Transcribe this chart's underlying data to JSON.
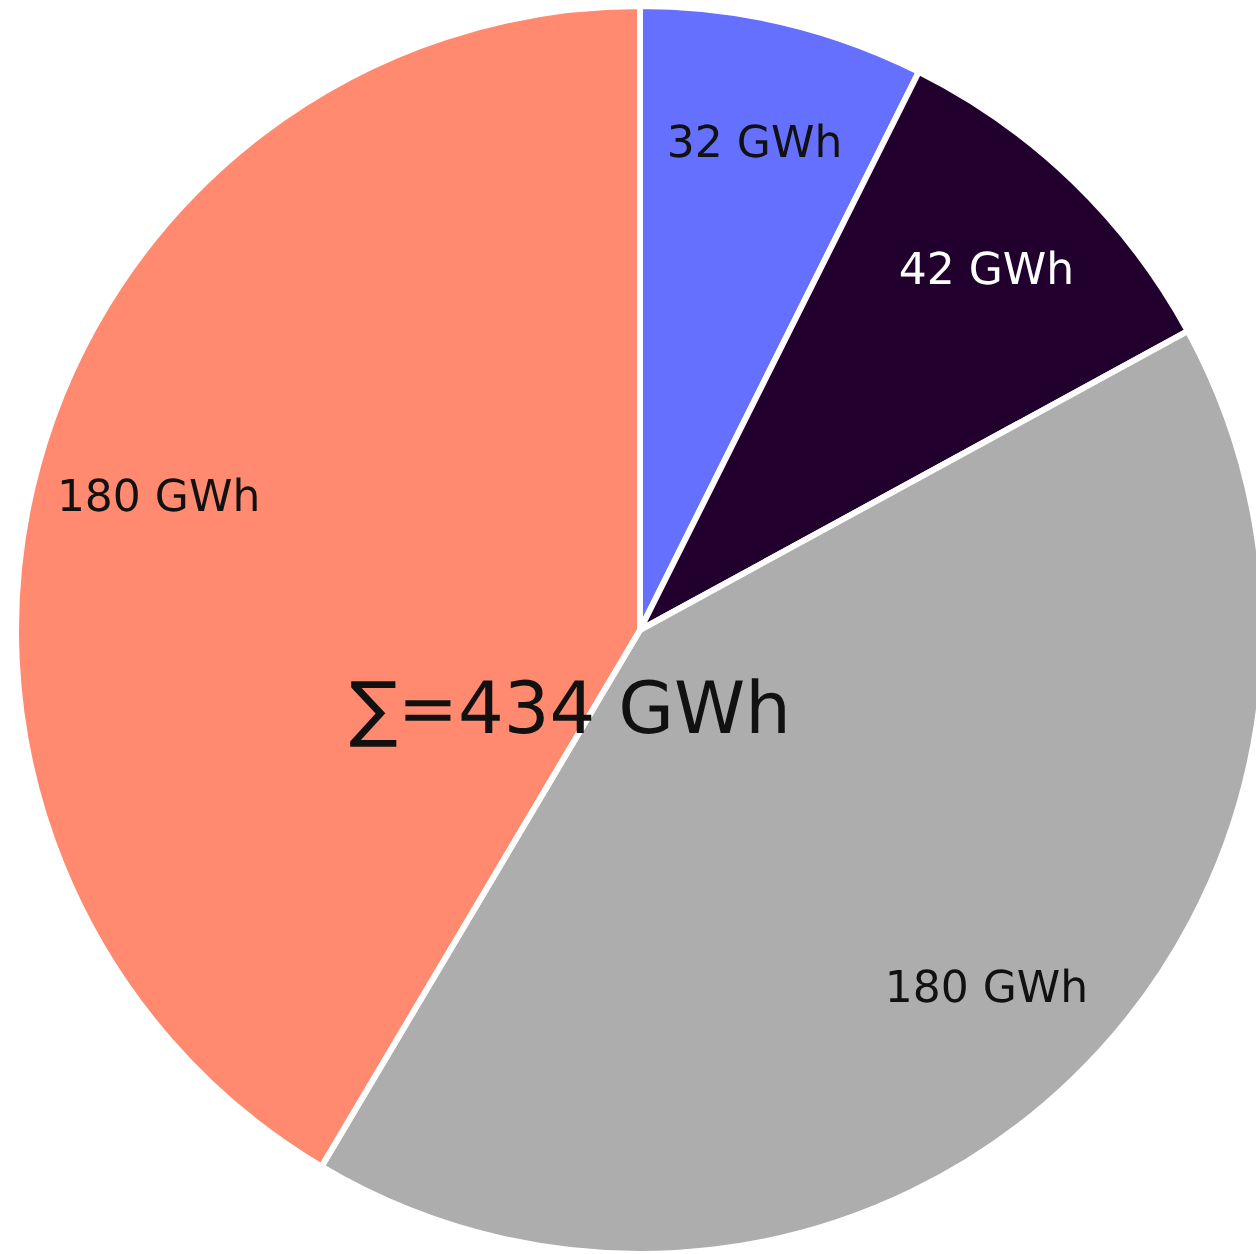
{
  "chart_data": {
    "type": "pie",
    "categories": [
      null,
      null,
      null,
      null
    ],
    "values": [
      32,
      42,
      180,
      180
    ],
    "colors": [
      "#6670ff",
      "#21002e",
      "#adadad",
      "#ff8a70"
    ],
    "value_labels": [
      "32 GWh",
      "42 GWh",
      "180 GWh",
      "180 GWh"
    ],
    "annotations": [
      "∑=434 GWh"
    ]
  }
}
